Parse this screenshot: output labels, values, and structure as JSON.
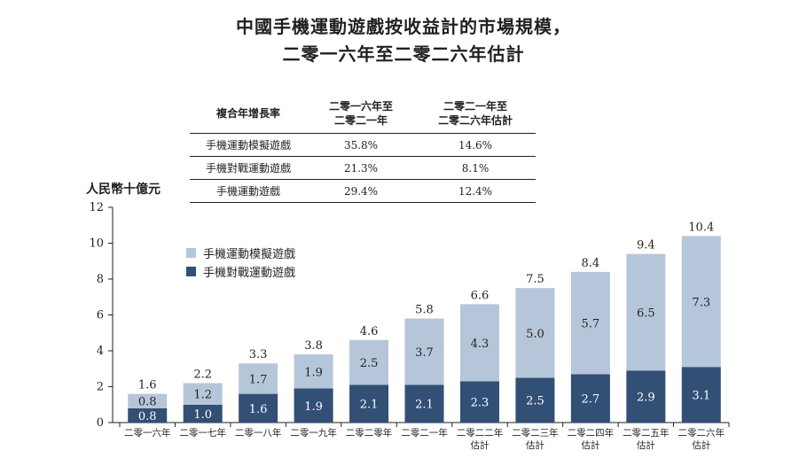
{
  "title_line1": "中國手機運動遊戲按收益計的市場規模，",
  "title_line2": "二零一六年至二零二六年估計",
  "cagr_table": {
    "header_label": "複合年增長率",
    "col1_line1": "二零一六年至",
    "col1_line2": "二零二一年",
    "col2_line1": "二零二一年至",
    "col2_line2": "二零二六年估計",
    "rows": [
      {
        "label": "手機運動模擬遊戲",
        "v1": "35.8%",
        "v2": "14.6%"
      },
      {
        "label": "手機對戰運動遊戲",
        "v1": "21.3%",
        "v2": "8.1%"
      },
      {
        "label": "手機運動遊戲",
        "v1": "29.4%",
        "v2": "12.4%"
      }
    ]
  },
  "chart_data": {
    "type": "bar",
    "stacked": true,
    "ylabel": "人民幣十億元",
    "ylim": [
      0,
      12
    ],
    "yticks": [
      0,
      2,
      4,
      6,
      8,
      10,
      12
    ],
    "categories": [
      [
        "二零一六年"
      ],
      [
        "二零一七年"
      ],
      [
        "二零一八年"
      ],
      [
        "二零一九年"
      ],
      [
        "二零二零年"
      ],
      [
        "二零二一年"
      ],
      [
        "二零二二年",
        "估計"
      ],
      [
        "二零二三年",
        "估計"
      ],
      [
        "二零二四年",
        "估計"
      ],
      [
        "二零二五年",
        "估計"
      ],
      [
        "二零二六年",
        "估計"
      ]
    ],
    "series": [
      {
        "name": "手機對戰運動遊戲",
        "color": "#324f75",
        "values": [
          0.8,
          1.0,
          1.6,
          1.9,
          2.1,
          2.1,
          2.3,
          2.5,
          2.7,
          2.9,
          3.1
        ]
      },
      {
        "name": "手機運動模擬遊戲",
        "color": "#b6c6da",
        "values": [
          0.8,
          1.2,
          1.7,
          1.9,
          2.5,
          3.7,
          4.3,
          5.0,
          5.7,
          6.5,
          7.3
        ]
      }
    ],
    "totals": [
      1.6,
      2.2,
      3.3,
      3.8,
      4.6,
      5.8,
      6.6,
      7.5,
      8.4,
      9.4,
      10.4
    ],
    "grid": false,
    "legend_position": "top-left"
  }
}
